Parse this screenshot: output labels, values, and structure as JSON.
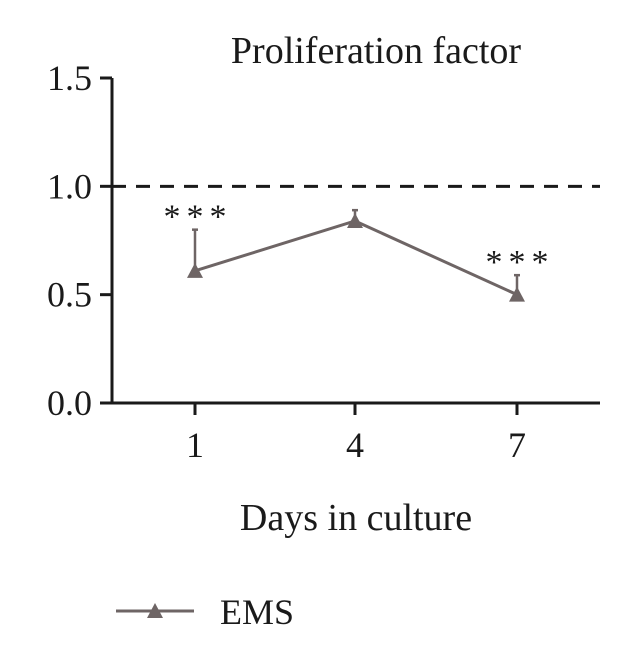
{
  "chart_data": {
    "type": "line",
    "title": "Proliferation factor",
    "xlabel": "Days in culture",
    "ylabel": "",
    "categories": [
      "1",
      "4",
      "7"
    ],
    "y_ticks": [
      "0.0",
      "0.5",
      "1.0",
      "1.5"
    ],
    "ylim": [
      0,
      1.5
    ],
    "reference_line": 1.0,
    "grid": false,
    "legend_position": "bottom-left",
    "series": [
      {
        "name": "EMS",
        "values": [
          0.61,
          0.84,
          0.5
        ],
        "error_upper": [
          0.8,
          0.89,
          0.59
        ],
        "significance": [
          "***",
          "",
          "***"
        ],
        "color": "#6e6565",
        "marker": "triangle"
      }
    ]
  }
}
